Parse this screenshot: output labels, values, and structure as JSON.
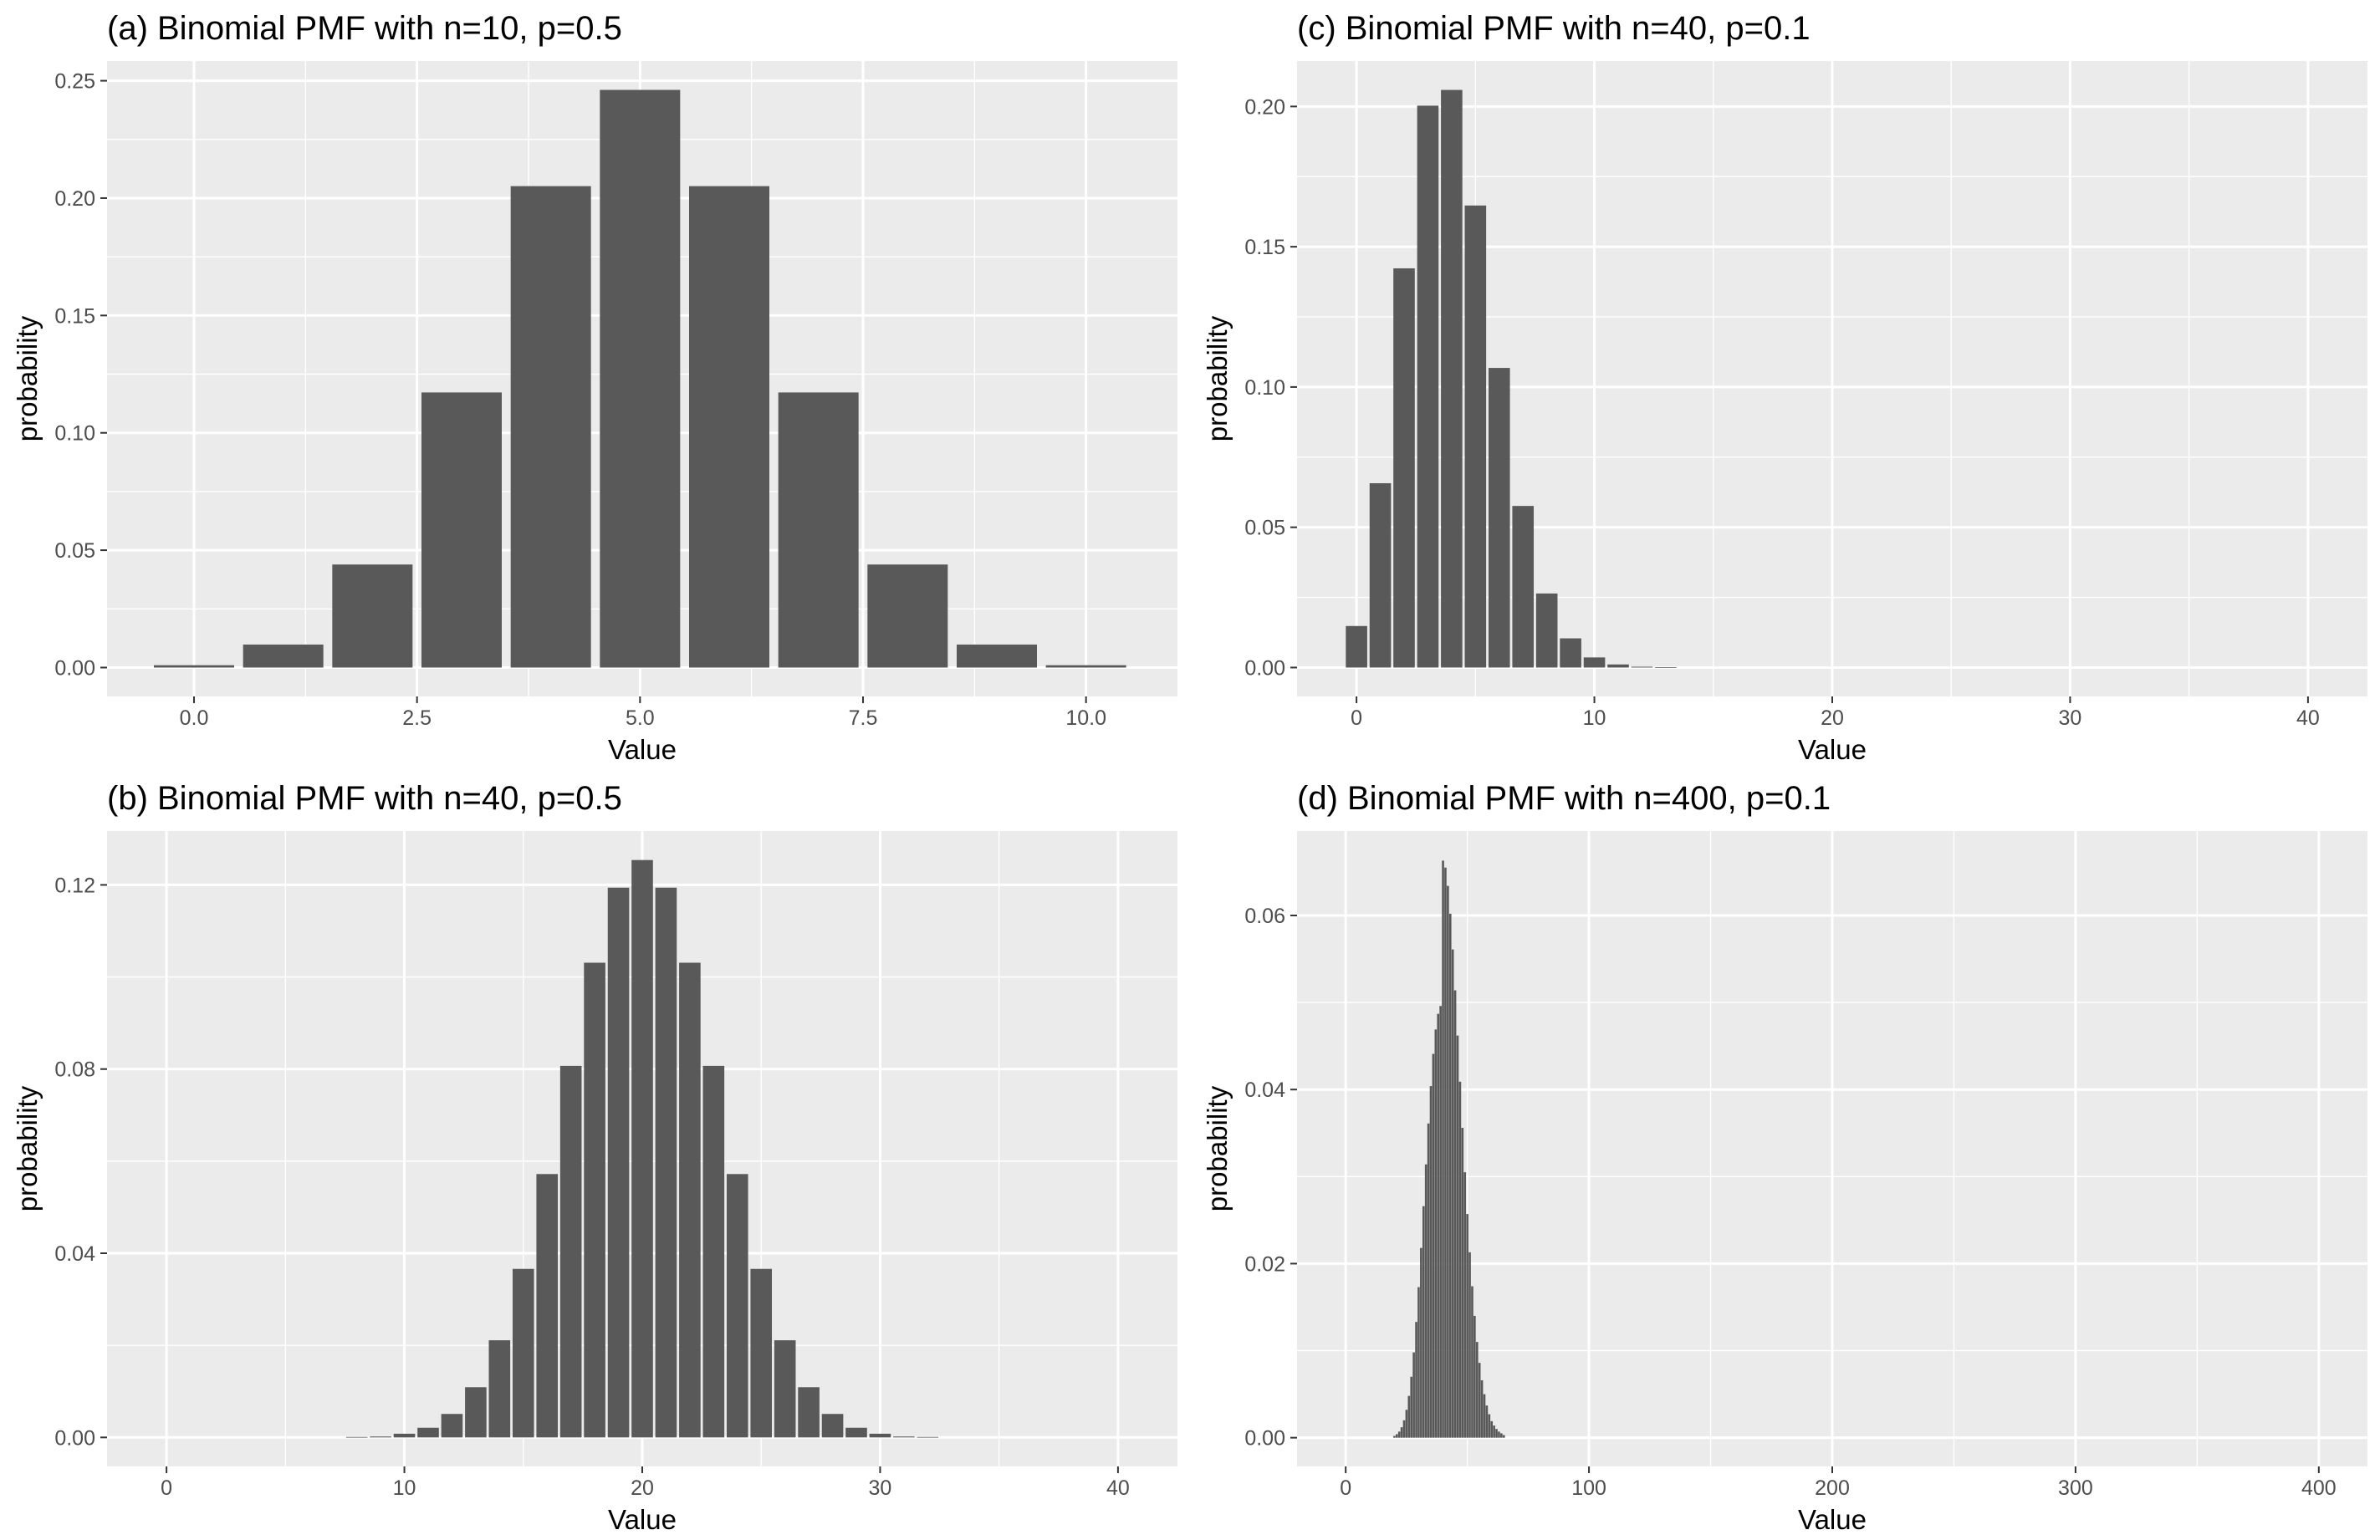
{
  "chart_data": [
    {
      "id": "a",
      "type": "bar",
      "title": "(a) Binomial PMF with n=10, p=0.5",
      "xlabel": "Value",
      "ylabel": "probability",
      "x": [
        0,
        1,
        2,
        3,
        4,
        5,
        6,
        7,
        8,
        9,
        10
      ],
      "values": [
        0.001,
        0.0098,
        0.0439,
        0.1172,
        0.2051,
        0.2461,
        0.2051,
        0.1172,
        0.0439,
        0.0098,
        0.001
      ],
      "bar_width": 0.9,
      "xlim": [
        -0.975,
        11.025
      ],
      "ylim": [
        -0.0123,
        0.2584
      ],
      "x_ticks": [
        0,
        2.5,
        5,
        7.5,
        10
      ],
      "x_tick_labels": [
        "0.0",
        "2.5",
        "5.0",
        "7.5",
        "10.0"
      ],
      "y_ticks": [
        0,
        0.05,
        0.1,
        0.15,
        0.2,
        0.25
      ],
      "y_tick_labels": [
        "0.00",
        "0.05",
        "0.10",
        "0.15",
        "0.20",
        "0.25"
      ],
      "grid": true,
      "bar_color": "#595959"
    },
    {
      "id": "b",
      "type": "bar",
      "title": "(b) Binomial PMF with n=40, p=0.5",
      "xlabel": "Value",
      "ylabel": "probability",
      "x": [
        8,
        9,
        10,
        11,
        12,
        13,
        14,
        15,
        16,
        17,
        18,
        19,
        20,
        21,
        22,
        23,
        24,
        25,
        26,
        27,
        28,
        29,
        30,
        31,
        32
      ],
      "values": [
        0.0001,
        0.0002,
        0.0008,
        0.0021,
        0.0051,
        0.0109,
        0.0211,
        0.0366,
        0.0572,
        0.0807,
        0.1031,
        0.1194,
        0.1254,
        0.1194,
        0.1031,
        0.0807,
        0.0572,
        0.0366,
        0.0211,
        0.0109,
        0.0051,
        0.0021,
        0.0008,
        0.0002,
        0.0001
      ],
      "bar_width": 0.9,
      "xlim": [
        -2.5,
        42.5
      ],
      "ylim": [
        -0.0063,
        0.1317
      ],
      "x_ticks": [
        0,
        10,
        20,
        30,
        40
      ],
      "x_tick_labels": [
        "0",
        "10",
        "20",
        "30",
        "40"
      ],
      "y_ticks": [
        0,
        0.04,
        0.08,
        0.12
      ],
      "y_tick_labels": [
        "0.00",
        "0.04",
        "0.08",
        "0.12"
      ],
      "grid": true,
      "bar_color": "#595959"
    },
    {
      "id": "c",
      "type": "bar",
      "title": "(c) Binomial PMF with n=40, p=0.1",
      "xlabel": "Value",
      "ylabel": "probability",
      "x": [
        0,
        1,
        2,
        3,
        4,
        5,
        6,
        7,
        8,
        9,
        10,
        11,
        12,
        13
      ],
      "values": [
        0.0148,
        0.0657,
        0.1423,
        0.2003,
        0.2059,
        0.1647,
        0.1068,
        0.0576,
        0.0264,
        0.0104,
        0.0036,
        0.0011,
        0.0003,
        0.0001
      ],
      "bar_width": 0.9,
      "xlim": [
        -2.5,
        42.5
      ],
      "ylim": [
        -0.0103,
        0.2162
      ],
      "x_ticks": [
        0,
        10,
        20,
        30,
        40
      ],
      "x_tick_labels": [
        "0",
        "10",
        "20",
        "30",
        "40"
      ],
      "y_ticks": [
        0,
        0.05,
        0.1,
        0.15,
        0.2
      ],
      "y_tick_labels": [
        "0.00",
        "0.05",
        "0.10",
        "0.15",
        "0.20"
      ],
      "grid": true,
      "bar_color": "#595959"
    },
    {
      "id": "d",
      "type": "bar",
      "title": "(d) Binomial PMF with n=400, p=0.1",
      "xlabel": "Value",
      "ylabel": "probability",
      "x": [
        20,
        21,
        22,
        23,
        24,
        25,
        26,
        27,
        28,
        29,
        30,
        31,
        32,
        33,
        34,
        35,
        36,
        37,
        38,
        39,
        40,
        41,
        42,
        43,
        44,
        45,
        46,
        47,
        48,
        49,
        50,
        51,
        52,
        53,
        54,
        55,
        56,
        57,
        58,
        59,
        60,
        61,
        62,
        63,
        64,
        65
      ],
      "values": [
        0.0002,
        0.0004,
        0.0007,
        0.0012,
        0.002,
        0.0032,
        0.0048,
        0.007,
        0.0098,
        0.0133,
        0.0173,
        0.0218,
        0.0266,
        0.0314,
        0.0361,
        0.0404,
        0.0441,
        0.0469,
        0.0487,
        0.0496,
        0.0663,
        0.0655,
        0.0634,
        0.0602,
        0.0561,
        0.0514,
        0.0462,
        0.0409,
        0.0356,
        0.0305,
        0.0257,
        0.0213,
        0.0174,
        0.014,
        0.011,
        0.0086,
        0.0066,
        0.005,
        0.0037,
        0.0027,
        0.0019,
        0.0014,
        0.001,
        0.0007,
        0.0005,
        0.0003
      ],
      "bar_width": 0.9,
      "xlim": [
        -20,
        420
      ],
      "ylim": [
        -0.0033,
        0.0697
      ],
      "x_ticks": [
        0,
        100,
        200,
        300,
        400
      ],
      "x_tick_labels": [
        "0",
        "100",
        "200",
        "300",
        "400"
      ],
      "y_ticks": [
        0,
        0.02,
        0.04,
        0.06
      ],
      "y_tick_labels": [
        "0.00",
        "0.02",
        "0.04",
        "0.06"
      ],
      "grid": true,
      "bar_color": "#595959"
    }
  ]
}
